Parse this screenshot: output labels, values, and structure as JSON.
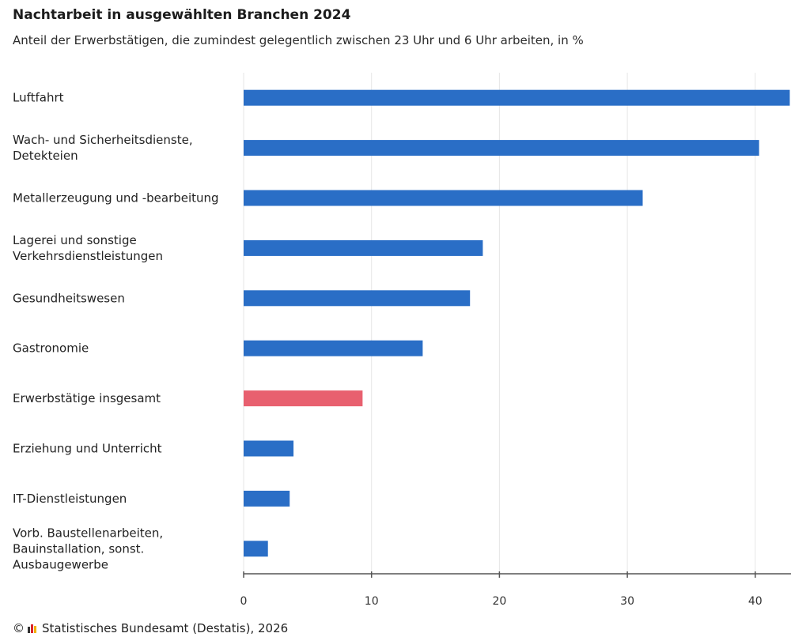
{
  "chart_data": {
    "type": "bar",
    "orientation": "horizontal",
    "title": "Nachtarbeit in ausgewählten Branchen 2024",
    "subtitle": "Anteil der Erwerbstätigen, die zumindest gelegentlich zwischen 23 Uhr und 6 Uhr arbeiten, in %",
    "xlabel": "",
    "ylabel": "",
    "xlim": [
      0,
      42.7
    ],
    "xticks": [
      0,
      10,
      20,
      30,
      40
    ],
    "grid": true,
    "categories": [
      [
        "Luftfahrt"
      ],
      [
        "Wach- und Sicherheitsdienste,",
        "Detekteien"
      ],
      [
        "Metallerzeugung und -bearbeitung"
      ],
      [
        "Lagerei und sonstige",
        "Verkehrsdienstleistungen"
      ],
      [
        "Gesundheitswesen"
      ],
      [
        "Gastronomie"
      ],
      [
        "Erwerbstätige insgesamt"
      ],
      [
        "Erziehung und Unterricht"
      ],
      [
        "IT-Dienstleistungen"
      ],
      [
        "Vorb. Baustellenarbeiten,",
        "Bauinstallation, sonst.",
        "Ausbaugewerbe"
      ]
    ],
    "values": [
      42.7,
      40.3,
      31.2,
      18.7,
      17.7,
      14.0,
      9.3,
      3.9,
      3.6,
      1.9
    ],
    "highlight_index": 6,
    "colors": {
      "default": "#2a6ec6",
      "highlight": "#e8606f",
      "grid": "#e6e6e6",
      "axis": "#555555"
    }
  },
  "source": "Statistisches Bundesamt (Destatis), 2026",
  "copyright_symbol": "©",
  "logo_colors": [
    "#333333",
    "#d9252b",
    "#f2b200"
  ]
}
